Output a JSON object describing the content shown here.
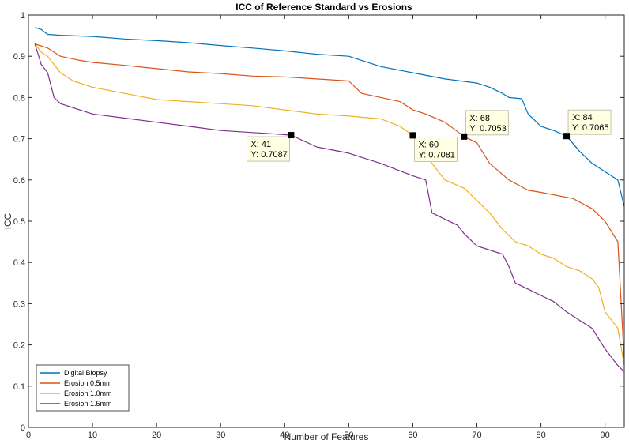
{
  "chart_data": {
    "type": "line",
    "title": "ICC of Reference Standard vs Erosions",
    "xlabel": "Number of Features",
    "ylabel": "ICC",
    "xlim": [
      0,
      93
    ],
    "ylim": [
      0,
      1
    ],
    "xticks": [
      0,
      10,
      20,
      30,
      40,
      50,
      60,
      70,
      80,
      90
    ],
    "yticks": [
      0,
      0.1,
      0.2,
      0.3,
      0.4,
      0.5,
      0.6,
      0.7,
      0.8,
      0.9,
      1
    ],
    "grid": false,
    "legend_position": "bottom-left",
    "series": [
      {
        "name": "Digital Biopsy",
        "color": "#0072BD",
        "x": [
          1,
          2,
          3,
          5,
          10,
          15,
          20,
          25,
          30,
          35,
          40,
          45,
          50,
          52,
          55,
          60,
          65,
          70,
          72,
          74,
          75,
          77,
          78,
          80,
          82,
          84,
          86,
          88,
          90,
          92,
          93
        ],
        "y": [
          0.97,
          0.965,
          0.953,
          0.951,
          0.948,
          0.942,
          0.938,
          0.933,
          0.926,
          0.92,
          0.913,
          0.905,
          0.9,
          0.89,
          0.875,
          0.86,
          0.845,
          0.835,
          0.825,
          0.81,
          0.8,
          0.797,
          0.76,
          0.73,
          0.72,
          0.7065,
          0.67,
          0.64,
          0.62,
          0.6,
          0.535
        ]
      },
      {
        "name": "Erosion 0.5mm",
        "color": "#D95319",
        "x": [
          1,
          3,
          5,
          8,
          10,
          15,
          20,
          25,
          30,
          35,
          40,
          45,
          50,
          52,
          55,
          58,
          60,
          62,
          65,
          68,
          70,
          72,
          75,
          78,
          80,
          85,
          88,
          90,
          92,
          93
        ],
        "y": [
          0.93,
          0.92,
          0.9,
          0.89,
          0.885,
          0.878,
          0.87,
          0.862,
          0.858,
          0.852,
          0.85,
          0.845,
          0.84,
          0.81,
          0.8,
          0.79,
          0.77,
          0.76,
          0.74,
          0.7053,
          0.69,
          0.64,
          0.6,
          0.575,
          0.57,
          0.555,
          0.53,
          0.5,
          0.45,
          0.16
        ]
      },
      {
        "name": "Erosion 1.0mm",
        "color": "#EDB120",
        "x": [
          1,
          2,
          3,
          5,
          7,
          10,
          15,
          20,
          25,
          30,
          35,
          40,
          45,
          50,
          55,
          58,
          60,
          62,
          65,
          68,
          70,
          72,
          74,
          76,
          78,
          80,
          82,
          84,
          86,
          88,
          89,
          90,
          92,
          93
        ],
        "y": [
          0.93,
          0.91,
          0.9,
          0.86,
          0.84,
          0.825,
          0.81,
          0.795,
          0.79,
          0.785,
          0.78,
          0.77,
          0.76,
          0.755,
          0.748,
          0.73,
          0.7081,
          0.66,
          0.6,
          0.58,
          0.55,
          0.52,
          0.48,
          0.45,
          0.44,
          0.42,
          0.41,
          0.39,
          0.38,
          0.36,
          0.34,
          0.28,
          0.24,
          0.15
        ]
      },
      {
        "name": "Erosion 1.5mm",
        "color": "#7E2F8E",
        "x": [
          1,
          2,
          3,
          4,
          5,
          8,
          10,
          15,
          20,
          25,
          30,
          35,
          38,
          41,
          45,
          50,
          55,
          60,
          62,
          63,
          65,
          67,
          68,
          70,
          72,
          74,
          75,
          76,
          78,
          80,
          82,
          84,
          86,
          88,
          90,
          92,
          93
        ],
        "y": [
          0.93,
          0.88,
          0.86,
          0.8,
          0.785,
          0.77,
          0.76,
          0.75,
          0.74,
          0.73,
          0.72,
          0.715,
          0.712,
          0.7087,
          0.68,
          0.665,
          0.64,
          0.61,
          0.6,
          0.52,
          0.505,
          0.49,
          0.47,
          0.44,
          0.43,
          0.42,
          0.39,
          0.35,
          0.335,
          0.32,
          0.305,
          0.28,
          0.26,
          0.24,
          0.19,
          0.15,
          0.135
        ]
      }
    ],
    "datatips": [
      {
        "x": 41,
        "y": 0.7087,
        "label_x": "X: 41",
        "label_y": "Y: 0.7087",
        "placement": "below-left"
      },
      {
        "x": 60,
        "y": 0.7081,
        "label_x": "X: 60",
        "label_y": "Y: 0.7081",
        "placement": "below-right"
      },
      {
        "x": 68,
        "y": 0.7053,
        "label_x": "X: 68",
        "label_y": "Y: 0.7053",
        "placement": "above-right"
      },
      {
        "x": 84,
        "y": 0.7065,
        "label_x": "X: 84",
        "label_y": "Y: 0.7065",
        "placement": "above-right"
      }
    ]
  }
}
